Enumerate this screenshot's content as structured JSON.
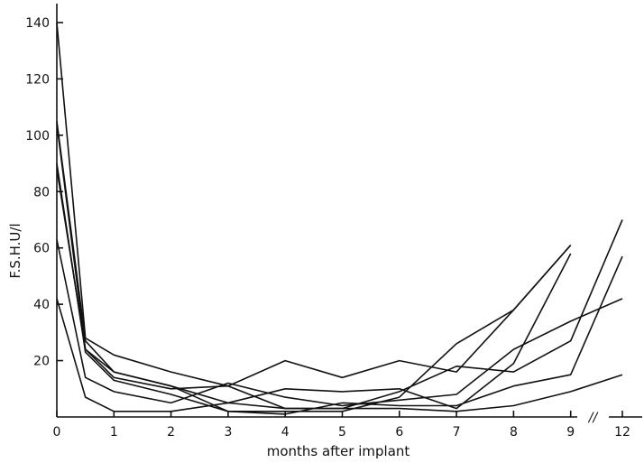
{
  "chart_data": {
    "type": "line",
    "title": "",
    "xlabel": "months after implant",
    "ylabel": "F.S.H.U/l",
    "x_ticks": [
      0,
      1,
      2,
      3,
      4,
      5,
      6,
      7,
      8,
      9,
      12
    ],
    "x_tick_labels": [
      "0",
      "1",
      "2",
      "3",
      "4",
      "5",
      "6",
      "7",
      "8",
      "9",
      "12"
    ],
    "x_axis_break": "between 9 and 12",
    "x_axis_break_symbol": "//",
    "y_ticks": [
      20,
      40,
      60,
      80,
      100,
      120,
      140
    ],
    "ylim": [
      0,
      145
    ],
    "grid": false,
    "legend": "none",
    "series": [
      {
        "x": [
          0,
          0.5,
          1,
          2,
          3,
          4,
          5,
          6,
          7,
          8,
          9
        ],
        "values": [
          140,
          28,
          22,
          16,
          11,
          20,
          14,
          20,
          16,
          38,
          61
        ]
      },
      {
        "x": [
          0,
          0.5,
          1,
          2,
          3,
          4,
          5,
          6,
          7,
          8,
          9
        ],
        "values": [
          105,
          27,
          16,
          11,
          2,
          2,
          2,
          7,
          26,
          38,
          61
        ]
      },
      {
        "x": [
          0,
          0.5,
          1,
          2,
          3,
          4,
          5,
          6,
          7,
          8,
          9
        ],
        "values": [
          104,
          24,
          16,
          11,
          5,
          10,
          9,
          10,
          3,
          19,
          58
        ]
      },
      {
        "x": [
          0,
          0.5,
          1,
          2,
          3,
          4,
          5,
          6,
          7,
          8,
          9,
          12
        ],
        "values": [
          88,
          24,
          14,
          10,
          11,
          3,
          3,
          9,
          18,
          16,
          27,
          70
        ]
      },
      {
        "x": [
          0,
          0.5,
          1,
          2,
          3,
          4,
          5,
          6,
          7,
          8,
          9,
          12
        ],
        "values": [
          90,
          23,
          13,
          8,
          2,
          1,
          5,
          4,
          4,
          11,
          15,
          57
        ]
      },
      {
        "x": [
          0,
          0.5,
          1,
          2,
          3,
          4,
          5,
          6,
          7,
          8,
          9,
          12
        ],
        "values": [
          63,
          14,
          9,
          5,
          12,
          7,
          4,
          6,
          8,
          24,
          34,
          42
        ]
      },
      {
        "x": [
          0,
          0.5,
          1,
          2,
          3,
          4,
          5,
          6,
          7,
          8,
          9,
          12
        ],
        "values": [
          42,
          7,
          2,
          2,
          5,
          3,
          3,
          3,
          2,
          4,
          9,
          15
        ]
      }
    ]
  }
}
